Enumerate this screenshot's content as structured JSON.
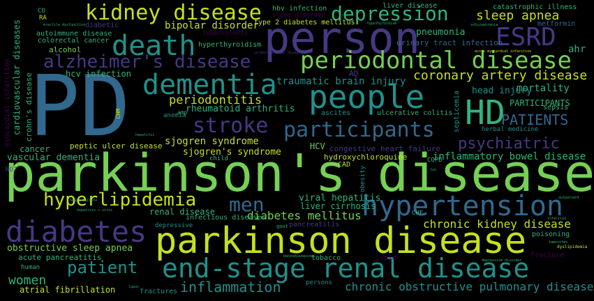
{
  "cloud": {
    "PD": "PD",
    "parkinsons_disease": "parkinson's disease",
    "parkinson_disease": "parkinson disease",
    "end_stage_renal_disease": "end-stage renal disease",
    "person": "person",
    "HD": "HD",
    "people": "people",
    "diabetes": "diabetes",
    "dementia": "dementia",
    "death": "death",
    "kidney_disease": "kidney disease",
    "periodontal_disease": "periodontal disease",
    "alzheimers_disease": "alzheimer's disease",
    "hypertension": "hypertension",
    "ESRD": "ESRD",
    "depression": "depression",
    "participants": "participants",
    "stroke": "stroke",
    "hyperlipidemia": "hyperlipidemia",
    "men": "men",
    "patient": "patient",
    "coronary_artery_disease": "coronary artery disease",
    "PATIENTS": "PATIENTS",
    "psychiatric": "psychiatric",
    "sleep_apnea": "sleep apnea",
    "inflammation": "inflammation",
    "chronic_obstructive_pulmonary_disease": "chronic obstructive pulmonary disease",
    "women": "women",
    "chronic_kidney_disease": "chronic kidney disease",
    "periodontitis": "periodontitis",
    "bipolar_disorder": "bipolar disorder",
    "diabetes_mellitus": "diabetes mellitus",
    "inflammatory_bowel_disease": "inflammatory bowel disease",
    "mortality": "mortality",
    "head_injury": "head injury",
    "PARTICIPANTS": "PARTICIPANTS",
    "pneumonia": "pneumonia",
    "ahr": "ahr",
    "traumatic_brain_injury": "traumatic brain injury",
    "rheumatoid_arthritis": "rheumatoid arthritis",
    "sjogren_syndrome": "sjogren syndrome",
    "sjogrens_syndrome": "sjogren's syndrome",
    "viral_hepatitis": "viral hepatitis",
    "liver_cirrhosis": "liver cirrhosis",
    "renal_disease": "renal disease",
    "cancer": "cancer",
    "vascular_dementia": "vascular dementia",
    "obstructive_sleep_apnea": "obstructive sleep apnea",
    "acute_pancreatitis": "acute pancreatitis",
    "atrial_fibrillation": "atrial fibrillation",
    "fractures": "fractures",
    "peptic_ulcer_disease": "peptic ulcer disease",
    "congestive_heart_failure": "congestive heart failure",
    "hydroxychloroquine": "hydroxychloroquine",
    "HCV": "HCV",
    "CAD": "CAD",
    "COPD": "COPD",
    "hcv_infection": "hcv infection",
    "hbv_infection": "hbv infection",
    "sleep_disorder": "sleep disorder",
    "liver_disease": "liver disease",
    "type_2_diabetes_mellitus": "type 2 diabetes mellitus",
    "catastrophic_illness": "catastrophic illness",
    "metformin": "metformin",
    "hyperthyroidism": "hyperthyroidism",
    "urinary_tract_infection": "urinary tract infection",
    "tuberculosis": "tuberculosis",
    "autoimmune_disease": "autoimmune disease",
    "colorectal_cancer": "colorectal cancer",
    "alcohol": "alcohol",
    "diabetic": "diabetic",
    "CO": "CO",
    "RA": "RA",
    "NO2": "NO2",
    "erectile_dysfunction": "erectile dysfunction",
    "hypothyroidism": "hypothyroidism",
    "schizophrenia": "schizophrenia",
    "acute_myocardial_infarction": "acute myocardial infarction",
    "cerebrovascular_disease": "cerebrovascular disease",
    "AD": "AD",
    "anemia": "anemia",
    "amp": "amp",
    "ascites": "ascites",
    "ulcerative_colitis": "ulcerative colitis",
    "sepsis": "sepsis",
    "herbal_medicine": "herbal medicine",
    "septicemia": "septicemia",
    "CHF": "CHF",
    "infectious_diseases": "infectious diseases",
    "pancreatitis": "pancreatitis",
    "depressive": "depressive",
    "gout": "gout",
    "poisoning": "poisoning",
    "tamoxifen": "tamoxifen",
    "dyslipidemia": "dyslipidemia",
    "infection": "infection",
    "outpatient": "outpatient",
    "fracture": "fracture",
    "depressive_disorder": "depressive disorder",
    "tobacco": "tobacco",
    "lipid": "lipid",
    "persons": "persons",
    "benzodiazepines": "benzodiazepines",
    "human": "human",
    "child": "child",
    "hepatitis": "hepatitis",
    "hepatitis_c_virus": "hepatitis c virus",
    "heart_failure": "heart failure",
    "obesity": "obesity",
    "cardiovascular_diseases": "cardiovascular diseases",
    "crohns_disease": "crohn's disease",
    "myocardial_infarction": "myocardial infarction",
    "CHM": "CHM",
    "lux": "lux",
    "lupus": "lupus"
  },
  "colors": {
    "yellow": "#c5e021",
    "lime": "#75d054",
    "green": "#2fb47c",
    "teal": "#21918c",
    "blue": "#31688e",
    "indigo": "#443983",
    "purple": "#440154"
  }
}
